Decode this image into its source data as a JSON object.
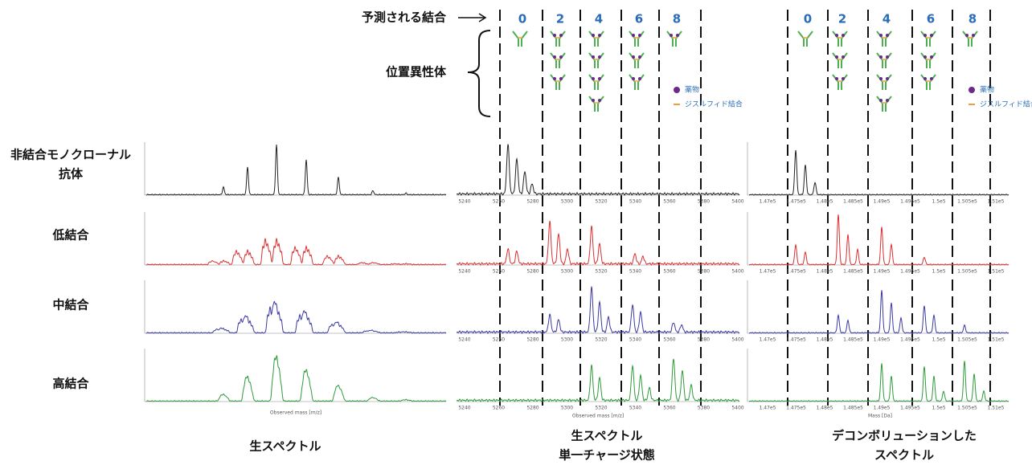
{
  "predicted_label": "予測される結合",
  "isomer_label": "位置異性体",
  "drug_counts": [
    0,
    2,
    4,
    6,
    8
  ],
  "legend": {
    "drug": "薬物",
    "disulfide": "ジスルフィド結合"
  },
  "rows": [
    [
      "非結合モノクローナル",
      "抗体"
    ],
    [
      "低結合"
    ],
    [
      "中結合"
    ],
    [
      "高結合"
    ]
  ],
  "columns": [
    [
      "生スペクトル"
    ],
    [
      "生スペクトル",
      "単一チャージ状態"
    ],
    [
      "デコンボリューションした",
      "スペクトル"
    ]
  ],
  "middle_axis": {
    "ticks": [
      "5240",
      "5260",
      "5280",
      "5300",
      "5320",
      "5340",
      "5360",
      "5380",
      "5400"
    ],
    "title": "Observed mass [m/z]"
  },
  "right_axis": {
    "ticks": [
      "1.47e5",
      "1.475e5",
      "1.48e5",
      "1.485e5",
      "1.49e5",
      "1.495e5",
      "1.5e5",
      "1.505e5",
      "1.51e5"
    ],
    "title": "Mass [Da]"
  },
  "left_axis": {
    "title": "Observed mass [m/z]"
  }
}
